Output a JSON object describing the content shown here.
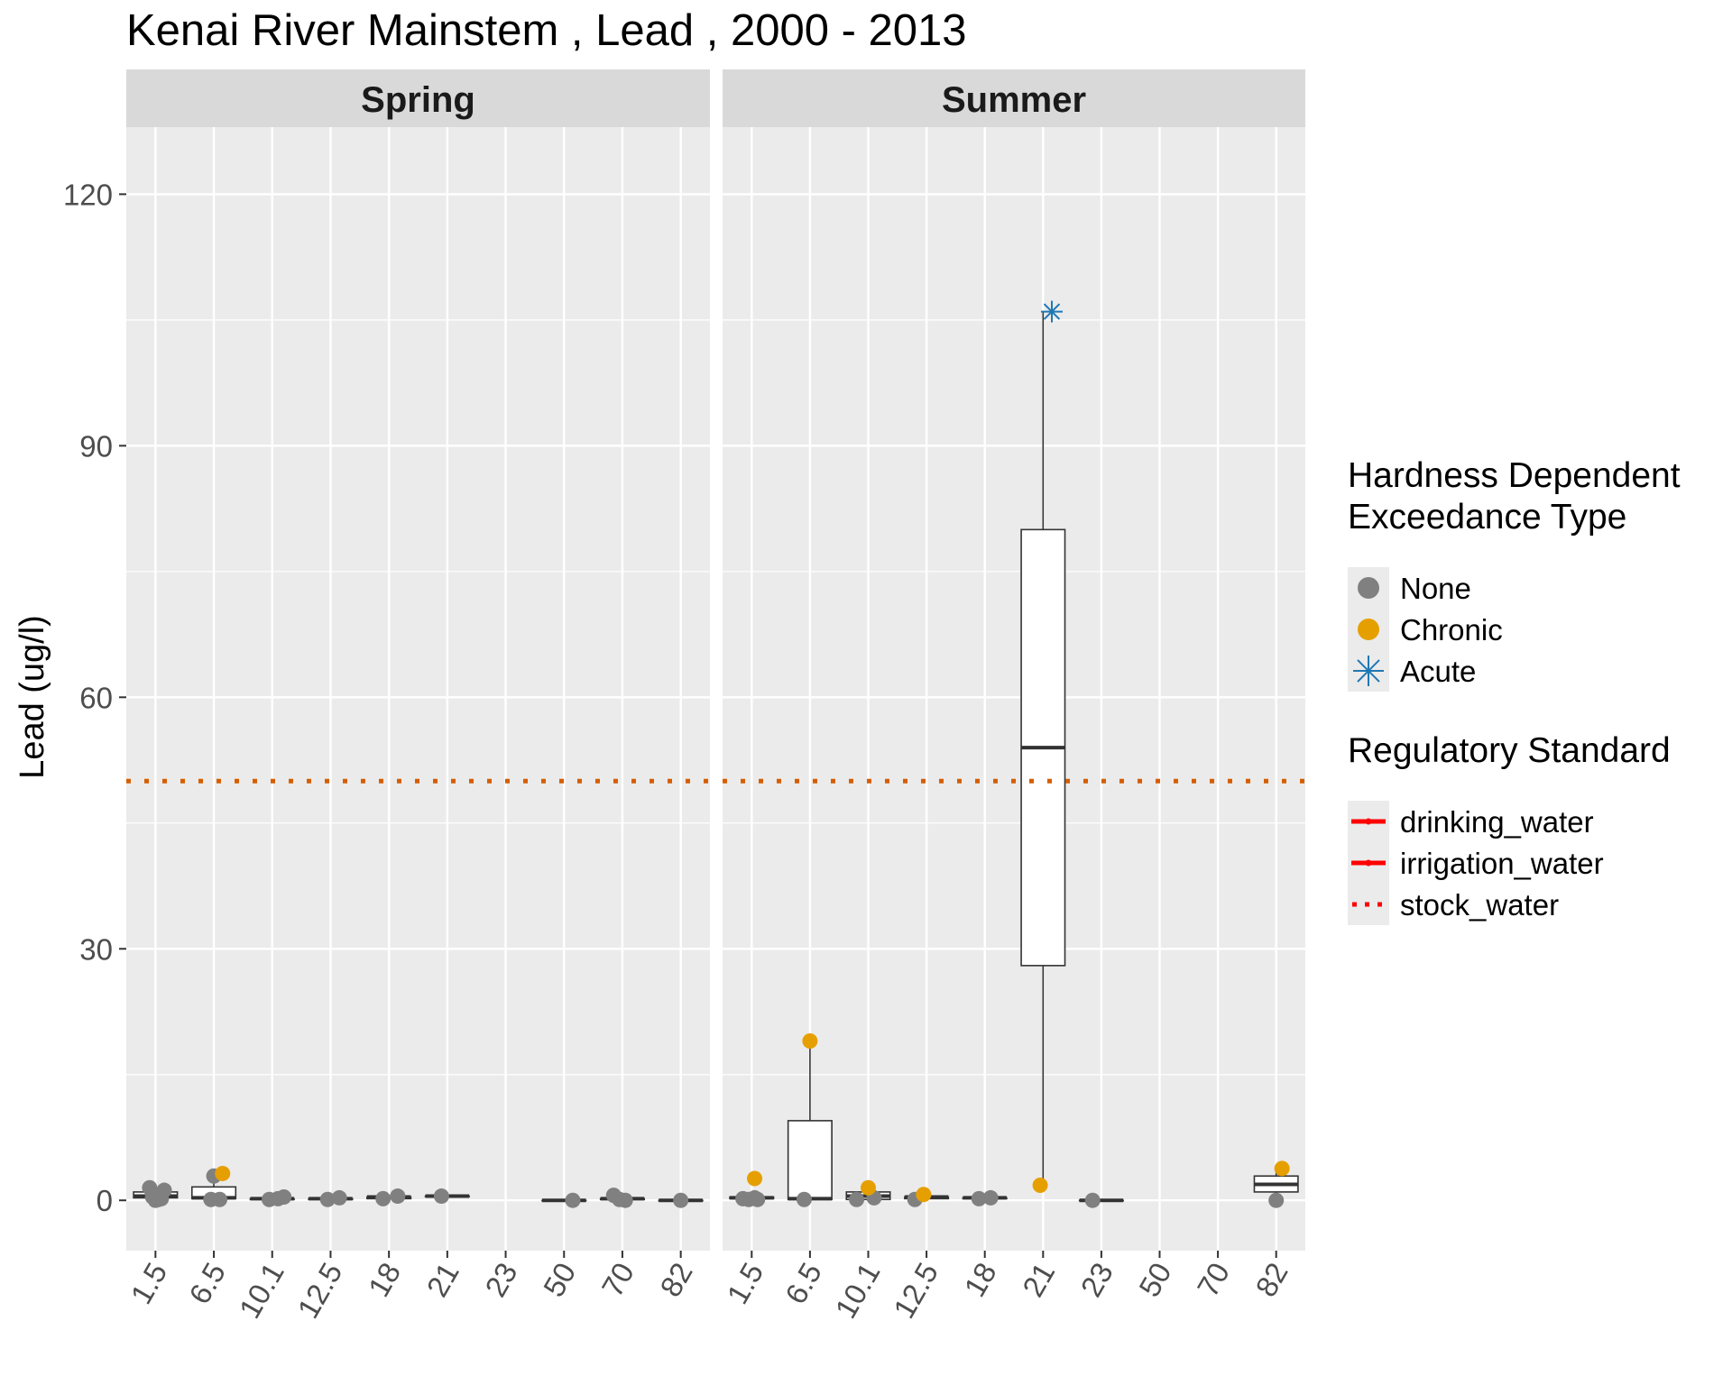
{
  "chart_data": {
    "type": "boxplot",
    "title": "Kenai River Mainstem , Lead , 2000 - 2013",
    "ylabel": "Lead (ug/l)",
    "xlabel": "",
    "ylim": [
      -6,
      128
    ],
    "yticks": [
      0,
      30,
      60,
      90,
      120
    ],
    "categories": [
      "1.5",
      "6.5",
      "10.1",
      "12.5",
      "18",
      "21",
      "23",
      "50",
      "70",
      "82"
    ],
    "reference_line": {
      "name": "stock_water",
      "value": 50,
      "color": "#D55E00"
    },
    "grid": true,
    "legend_position": "right",
    "legends": [
      {
        "title_lines": [
          "Hardness Dependent",
          "Exceedance Type"
        ],
        "items": [
          {
            "label": "None",
            "color": "#808080",
            "symbol": "dot"
          },
          {
            "label": "Chronic",
            "color": "#E69F00",
            "symbol": "dot"
          },
          {
            "label": "Acute",
            "color": "#1F78B4",
            "symbol": "asterisk"
          }
        ]
      },
      {
        "title_lines": [
          "Regulatory Standard"
        ],
        "items": [
          {
            "label": "drinking_water",
            "color": "#FF0000",
            "symbol": "solid"
          },
          {
            "label": "irrigation_water",
            "color": "#FF0000",
            "symbol": "solid"
          },
          {
            "label": "stock_water",
            "color": "#FF0000",
            "symbol": "dotted"
          }
        ]
      }
    ],
    "panels": [
      {
        "name": "Spring",
        "boxes": [
          {
            "x": "1.5",
            "lower": 0.3,
            "q1": 0.3,
            "median": 0.5,
            "q3": 1.0,
            "upper": 1.3
          },
          {
            "x": "6.5",
            "lower": 0.2,
            "q1": 0.2,
            "median": 0.3,
            "q3": 1.6,
            "upper": 3.2
          },
          {
            "x": "10.1",
            "lower": 0.1,
            "q1": 0.1,
            "median": 0.2,
            "q3": 0.2,
            "upper": 0.4
          },
          {
            "x": "12.5",
            "lower": 0.1,
            "q1": 0.1,
            "median": 0.2,
            "q3": 0.2,
            "upper": 0.3
          },
          {
            "x": "18",
            "lower": 0.2,
            "q1": 0.2,
            "median": 0.4,
            "q3": 0.4,
            "upper": 0.5
          },
          {
            "x": "21",
            "lower": 0.5,
            "q1": 0.5,
            "median": 0.5,
            "q3": 0.5,
            "upper": 0.5
          },
          {
            "x": "50",
            "lower": 0.0,
            "q1": 0.0,
            "median": 0.0,
            "q3": 0.0,
            "upper": 0.0
          },
          {
            "x": "70",
            "lower": 0.1,
            "q1": 0.1,
            "median": 0.2,
            "q3": 0.2,
            "upper": 0.5
          },
          {
            "x": "82",
            "lower": 0.0,
            "q1": 0.0,
            "median": 0.0,
            "q3": 0.0,
            "upper": 0.0
          }
        ],
        "points": [
          {
            "x": "1.5",
            "dx": -0.1,
            "y": 1.5,
            "type": "None"
          },
          {
            "x": "1.5",
            "dx": 0.15,
            "y": 1.2,
            "type": "None"
          },
          {
            "x": "1.5",
            "dx": -0.05,
            "y": 0.4,
            "type": "None"
          },
          {
            "x": "1.5",
            "dx": 0.05,
            "y": 0.1,
            "type": "None"
          },
          {
            "x": "1.5",
            "dx": 0.1,
            "y": 0.2,
            "type": "None"
          },
          {
            "x": "1.5",
            "dx": 0.0,
            "y": 0.0,
            "type": "None"
          },
          {
            "x": "6.5",
            "dx": 0.0,
            "y": 2.9,
            "type": "None"
          },
          {
            "x": "6.5",
            "dx": -0.05,
            "y": 0.1,
            "type": "None"
          },
          {
            "x": "6.5",
            "dx": 0.1,
            "y": 0.1,
            "type": "None"
          },
          {
            "x": "6.5",
            "dx": 0.15,
            "y": 3.2,
            "type": "Chronic"
          },
          {
            "x": "10.1",
            "dx": -0.05,
            "y": 0.1,
            "type": "None"
          },
          {
            "x": "10.1",
            "dx": 0.1,
            "y": 0.2,
            "type": "None"
          },
          {
            "x": "10.1",
            "dx": 0.2,
            "y": 0.4,
            "type": "None"
          },
          {
            "x": "12.5",
            "dx": -0.05,
            "y": 0.1,
            "type": "None"
          },
          {
            "x": "12.5",
            "dx": 0.15,
            "y": 0.3,
            "type": "None"
          },
          {
            "x": "18",
            "dx": -0.1,
            "y": 0.2,
            "type": "None"
          },
          {
            "x": "18",
            "dx": 0.15,
            "y": 0.5,
            "type": "None"
          },
          {
            "x": "21",
            "dx": -0.1,
            "y": 0.5,
            "type": "None"
          },
          {
            "x": "50",
            "dx": 0.15,
            "y": 0.0,
            "type": "None"
          },
          {
            "x": "70",
            "dx": -0.15,
            "y": 0.6,
            "type": "None"
          },
          {
            "x": "70",
            "dx": -0.05,
            "y": 0.1,
            "type": "None"
          },
          {
            "x": "70",
            "dx": 0.05,
            "y": 0.0,
            "type": "None"
          },
          {
            "x": "82",
            "dx": 0.0,
            "y": 0.0,
            "type": "None"
          }
        ]
      },
      {
        "name": "Summer",
        "boxes": [
          {
            "x": "1.5",
            "lower": 0.2,
            "q1": 0.2,
            "median": 0.3,
            "q3": 0.4,
            "upper": 0.5
          },
          {
            "x": "6.5",
            "lower": 0.1,
            "q1": 0.1,
            "median": 0.2,
            "q3": 9.5,
            "upper": 19.0
          },
          {
            "x": "10.1",
            "lower": 0.1,
            "q1": 0.1,
            "median": 0.5,
            "q3": 1.0,
            "upper": 1.5
          },
          {
            "x": "12.5",
            "lower": 0.2,
            "q1": 0.2,
            "median": 0.4,
            "q3": 0.4,
            "upper": 0.7
          },
          {
            "x": "18",
            "lower": 0.2,
            "q1": 0.2,
            "median": 0.3,
            "q3": 0.3,
            "upper": 0.4
          },
          {
            "x": "21",
            "lower": 1.8,
            "q1": 28.0,
            "median": 54.0,
            "q3": 80.0,
            "upper": 106.0
          },
          {
            "x": "23",
            "lower": 0.0,
            "q1": 0.0,
            "median": 0.0,
            "q3": 0.0,
            "upper": 0.0
          },
          {
            "x": "82",
            "lower": 0.1,
            "q1": 1.0,
            "median": 1.9,
            "q3": 2.9,
            "upper": 3.8
          }
        ],
        "points": [
          {
            "x": "1.5",
            "dx": -0.15,
            "y": 0.2,
            "type": "None"
          },
          {
            "x": "1.5",
            "dx": -0.05,
            "y": 0.1,
            "type": "None"
          },
          {
            "x": "1.5",
            "dx": 0.05,
            "y": 0.3,
            "type": "None"
          },
          {
            "x": "1.5",
            "dx": 0.1,
            "y": 0.1,
            "type": "None"
          },
          {
            "x": "1.5",
            "dx": 0.05,
            "y": 2.6,
            "type": "Chronic"
          },
          {
            "x": "6.5",
            "dx": -0.1,
            "y": 0.1,
            "type": "None"
          },
          {
            "x": "6.5",
            "dx": 0.0,
            "y": 19.0,
            "type": "Chronic"
          },
          {
            "x": "10.1",
            "dx": -0.2,
            "y": 0.1,
            "type": "None"
          },
          {
            "x": "10.1",
            "dx": 0.1,
            "y": 0.3,
            "type": "None"
          },
          {
            "x": "10.1",
            "dx": 0.0,
            "y": 1.5,
            "type": "Chronic"
          },
          {
            "x": "12.5",
            "dx": -0.2,
            "y": 0.1,
            "type": "None"
          },
          {
            "x": "12.5",
            "dx": -0.05,
            "y": 0.7,
            "type": "Chronic"
          },
          {
            "x": "18",
            "dx": -0.1,
            "y": 0.2,
            "type": "None"
          },
          {
            "x": "18",
            "dx": 0.1,
            "y": 0.3,
            "type": "None"
          },
          {
            "x": "21",
            "dx": -0.05,
            "y": 1.8,
            "type": "Chronic"
          },
          {
            "x": "21",
            "dx": 0.15,
            "y": 106.0,
            "type": "Acute"
          },
          {
            "x": "23",
            "dx": -0.15,
            "y": 0.0,
            "type": "None"
          },
          {
            "x": "82",
            "dx": 0.0,
            "y": 0.0,
            "type": "None"
          },
          {
            "x": "82",
            "dx": 0.1,
            "y": 3.8,
            "type": "Chronic"
          }
        ]
      }
    ]
  }
}
